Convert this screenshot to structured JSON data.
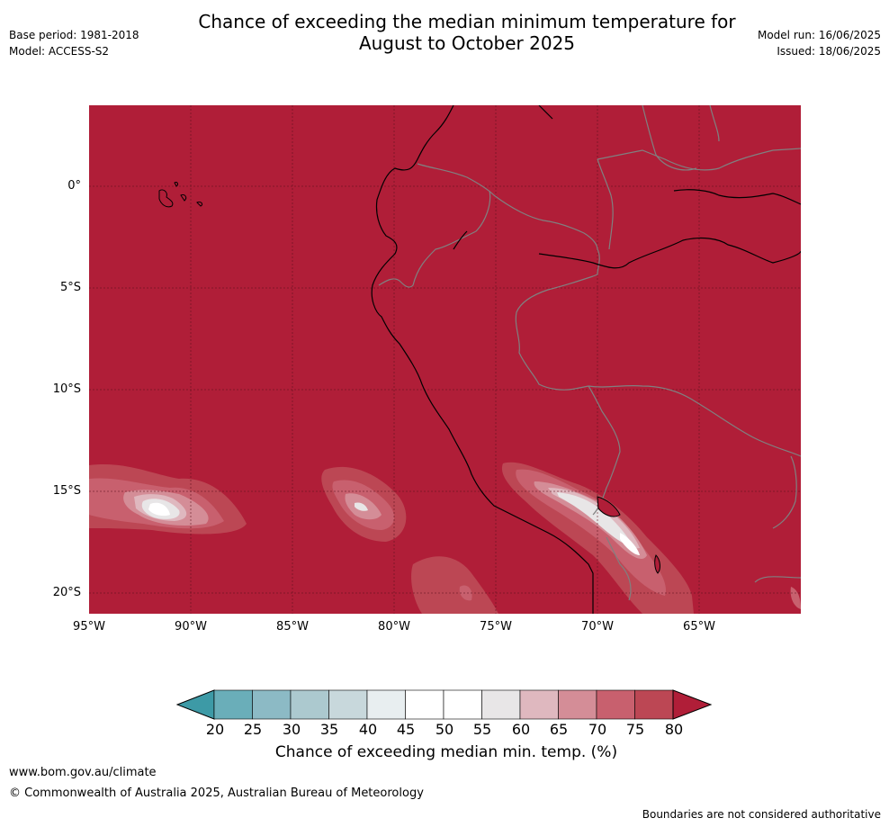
{
  "title": "Chance of exceeding the median minimum temperature for\nAugust to October 2025",
  "meta_left": {
    "base_period": "Base period: 1981-2018",
    "model": "Model: ACCESS-S2"
  },
  "meta_right": {
    "model_run": "Model run: 16/06/2025",
    "issued": "Issued: 18/06/2025"
  },
  "map": {
    "background_color": "#b01e38",
    "lat_labels": [
      "0°",
      "5°S",
      "10°S",
      "15°S",
      "20°S"
    ],
    "lon_labels": [
      "95°W",
      "90°W",
      "85°W",
      "80°W",
      "75°W",
      "70°W",
      "65°W"
    ]
  },
  "colorbar": {
    "ticks": [
      "20",
      "25",
      "30",
      "35",
      "40",
      "45",
      "50",
      "55",
      "60",
      "65",
      "70",
      "75",
      "80"
    ],
    "colors": [
      "#3d9aa6",
      "#6aaeb9",
      "#8cbac5",
      "#acc9cf",
      "#c8d8dc",
      "#e8eef0",
      "#ffffff",
      "#ffffff",
      "#e8e6e7",
      "#dfb8bf",
      "#d48d97",
      "#c8606e",
      "#bc4754",
      "#b01e38"
    ],
    "label": "Chance of exceeding median min. temp. (%)"
  },
  "footer": {
    "url": "www.bom.gov.au/climate",
    "copyright": "© Commonwealth of Australia 2025, Australian Bureau of Meteorology",
    "note": "Boundaries are not considered authoritative"
  }
}
